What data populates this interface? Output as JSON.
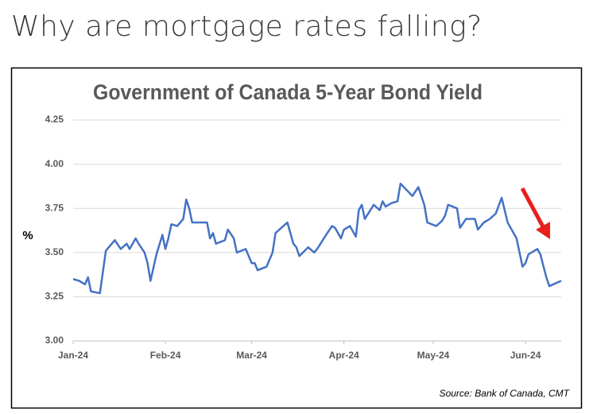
{
  "heading": "Why are mortgage rates falling?",
  "chart_data": {
    "type": "line",
    "title": "Government of Canada 5-Year Bond Yield",
    "y_label": "%",
    "source": "Source: Bank of Canada, CMT",
    "x": [
      0,
      2,
      4,
      5,
      6,
      9,
      11,
      14,
      16,
      18,
      19,
      21,
      22,
      24,
      25,
      26,
      28,
      30,
      31,
      32,
      33,
      35,
      37,
      38,
      39,
      40,
      45,
      46,
      47,
      48,
      51,
      52,
      54,
      55,
      58,
      60,
      61,
      62,
      65,
      67,
      68,
      72,
      74,
      75,
      76,
      79,
      81,
      82,
      85,
      87,
      88,
      90,
      91,
      93,
      95,
      96,
      97,
      98,
      101,
      103,
      104,
      105,
      107,
      109,
      110,
      114,
      116,
      118,
      119,
      122,
      124,
      125,
      126,
      129,
      130,
      132,
      135,
      136,
      138,
      140,
      142,
      144,
      146,
      149,
      151,
      152,
      153,
      156,
      157,
      159,
      160,
      164
    ],
    "series": [
      {
        "name": "5-Year Bond Yield",
        "color": "#4472c4",
        "values": [
          3.35,
          3.34,
          3.32,
          3.36,
          3.28,
          3.27,
          3.51,
          3.57,
          3.52,
          3.55,
          3.52,
          3.58,
          3.55,
          3.5,
          3.44,
          3.34,
          3.49,
          3.6,
          3.52,
          3.58,
          3.66,
          3.65,
          3.69,
          3.8,
          3.75,
          3.67,
          3.67,
          3.58,
          3.61,
          3.55,
          3.57,
          3.63,
          3.58,
          3.5,
          3.52,
          3.44,
          3.44,
          3.4,
          3.42,
          3.5,
          3.61,
          3.67,
          3.55,
          3.53,
          3.48,
          3.53,
          3.5,
          3.52,
          3.6,
          3.65,
          3.64,
          3.58,
          3.63,
          3.65,
          3.59,
          3.74,
          3.77,
          3.69,
          3.77,
          3.74,
          3.79,
          3.76,
          3.78,
          3.79,
          3.89,
          3.82,
          3.87,
          3.77,
          3.67,
          3.65,
          3.68,
          3.71,
          3.77,
          3.75,
          3.64,
          3.69,
          3.69,
          3.63,
          3.67,
          3.69,
          3.72,
          3.81,
          3.67,
          3.58,
          3.42,
          3.44,
          3.49,
          3.52,
          3.49,
          3.36,
          3.31,
          3.34
        ]
      }
    ],
    "xlim": [
      0,
      164
    ],
    "xticks": [
      {
        "value": 0,
        "label": "Jan-24"
      },
      {
        "value": 31,
        "label": "Feb-24"
      },
      {
        "value": 60,
        "label": "Mar-24"
      },
      {
        "value": 91,
        "label": "Apr-24"
      },
      {
        "value": 121,
        "label": "May-24"
      },
      {
        "value": 152,
        "label": "Jun-24"
      }
    ],
    "ylim": [
      3,
      4.25
    ],
    "yticks": [
      {
        "value": 3,
        "label": "3.00"
      },
      {
        "value": 3.25,
        "label": "3.25"
      },
      {
        "value": 3.5,
        "label": "3.50"
      },
      {
        "value": 3.75,
        "label": "3.75"
      },
      {
        "value": 4,
        "label": "4.00"
      },
      {
        "value": 4.25,
        "label": "4.25"
      }
    ],
    "grid": true
  }
}
